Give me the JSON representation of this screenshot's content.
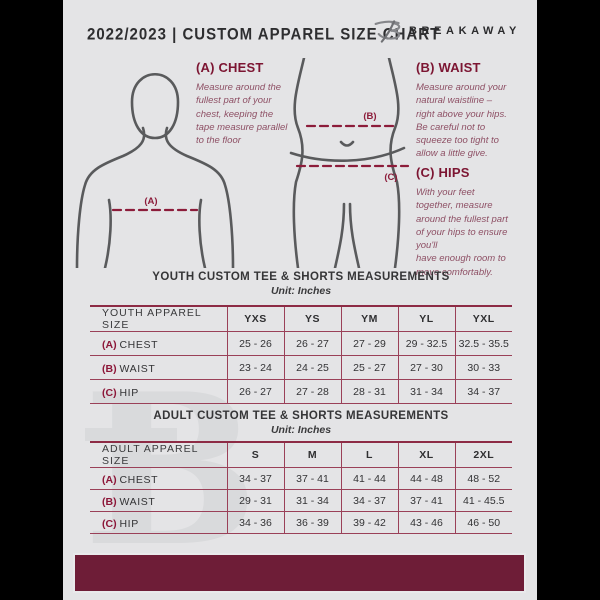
{
  "header": {
    "title": "2022/2023 | CUSTOM APPAREL SIZE CHART",
    "brand": "BREAKAWAY",
    "logo_icon": "breakaway-b-logo"
  },
  "colors": {
    "page_background": "#e4e4e6",
    "accent_maroon": "#7c1532",
    "table_border": "#9a4058",
    "footer_bar": "#6e1d37",
    "figure_outline": "#595a5c",
    "watermark": "#d9dadc"
  },
  "measure_guide": {
    "labels": {
      "chest": "(A)",
      "waist": "(B)",
      "hips": "(C)"
    },
    "chest": {
      "heading": "(A) CHEST",
      "body": "Measure around the\nfullest part of your\nchest, keeping the\ntape measure parallel\nto the floor"
    },
    "waist": {
      "heading": "(B) WAIST",
      "body": "Measure around your\nnatural waistline –\nright above your hips.\nBe careful not to\nsqueeze too tight to\nallow a little give."
    },
    "hips": {
      "heading": "(C) HIPS",
      "body": "With your feet\ntogether, measure\naround the fullest part\nof your hips to ensure\nyou'll\nhave enough room to\nmove comfortably."
    }
  },
  "youth_table": {
    "title": "YOUTH CUSTOM TEE & SHORTS MEASUREMENTS",
    "unit": "Unit: Inches",
    "label_header": "YOUTH APPAREL SIZE",
    "size_headers": [
      "YXS",
      "YS",
      "YM",
      "YL",
      "YXL"
    ],
    "rows": [
      {
        "prefix": "(A)",
        "label": "CHEST",
        "values": [
          "25 - 26",
          "26 - 27",
          "27 - 29",
          "29 - 32.5",
          "32.5 - 35.5"
        ]
      },
      {
        "prefix": "(B)",
        "label": "WAIST",
        "values": [
          "23 - 24",
          "24 - 25",
          "25 - 27",
          "27 - 30",
          "30 - 33"
        ]
      },
      {
        "prefix": "(C)",
        "label": "HIP",
        "values": [
          "26 - 27",
          "27 - 28",
          "28 - 31",
          "31 - 34",
          "34 - 37"
        ]
      }
    ]
  },
  "adult_table": {
    "title": "ADULT CUSTOM TEE & SHORTS MEASUREMENTS",
    "unit": "Unit: Inches",
    "label_header": "ADULT APPAREL SIZE",
    "size_headers": [
      "S",
      "M",
      "L",
      "XL",
      "2XL"
    ],
    "rows": [
      {
        "prefix": "(A)",
        "label": "CHEST",
        "values": [
          "34 - 37",
          "37 - 41",
          "41 - 44",
          "44 - 48",
          "48 - 52"
        ]
      },
      {
        "prefix": "(B)",
        "label": "WAIST",
        "values": [
          "29 - 31",
          "31 - 34",
          "34 - 37",
          "37 - 41",
          "41 - 45.5"
        ]
      },
      {
        "prefix": "(C)",
        "label": "HIP",
        "values": [
          "34 - 36",
          "36 - 39",
          "39 - 42",
          "43 - 46",
          "46 - 50"
        ]
      }
    ]
  },
  "watermark_letter": "B"
}
